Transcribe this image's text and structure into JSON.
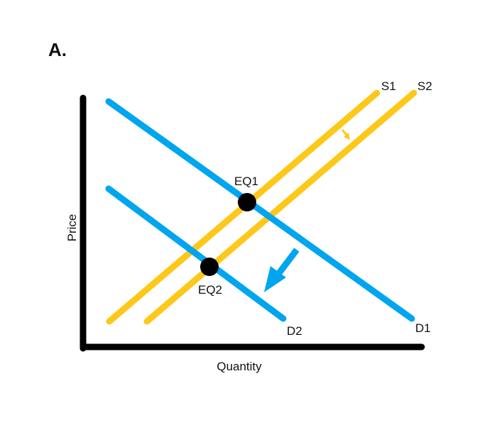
{
  "panel_label": "A.",
  "axes": {
    "y_label": "Price",
    "x_label": "Quantity",
    "color": "#000000"
  },
  "curves": {
    "d1": {
      "label": "D1",
      "color": "#00a5ef"
    },
    "d2": {
      "label": "D2",
      "color": "#00a5ef"
    },
    "s1": {
      "label": "S1",
      "color": "#fdc819"
    },
    "s2": {
      "label": "S2",
      "color": "#fdc819"
    }
  },
  "points": {
    "eq1": {
      "label": "EQ1",
      "color": "#000000"
    },
    "eq2": {
      "label": "EQ2",
      "color": "#000000"
    }
  },
  "shift_arrows": {
    "supply": {
      "direction": "down-right",
      "color": "#fdc819"
    },
    "demand": {
      "direction": "down-left",
      "color": "#00a5ef"
    }
  }
}
